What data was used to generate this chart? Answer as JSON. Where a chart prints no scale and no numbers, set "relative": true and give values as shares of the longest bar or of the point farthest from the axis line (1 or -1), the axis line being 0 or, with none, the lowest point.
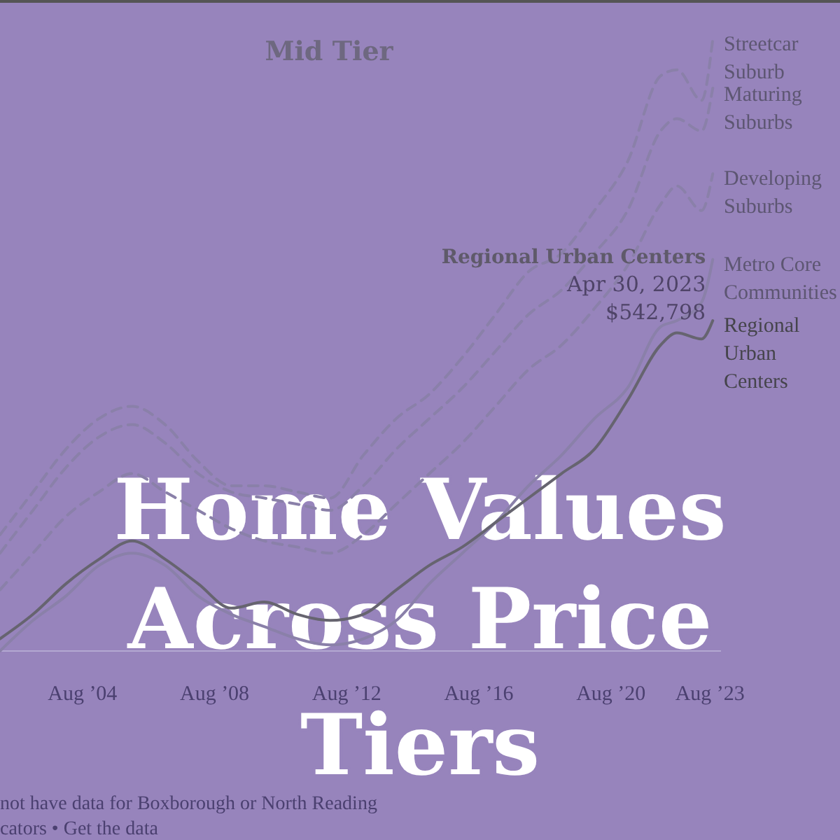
{
  "chart_data": {
    "type": "line",
    "title": "Home Values Across Price Tiers",
    "subtitle": "Mid Tier",
    "relative": true,
    "legend": false,
    "marker": "none",
    "x": [
      "2002-02",
      "2003-02",
      "2004-02",
      "2005-02",
      "2006-02",
      "2007-02",
      "2008-02",
      "2009-02",
      "2010-02",
      "2011-02",
      "2012-02",
      "2013-02",
      "2014-02",
      "2015-02",
      "2016-02",
      "2017-02",
      "2018-02",
      "2019-02",
      "2020-02",
      "2021-02",
      "2022-02",
      "2022-08",
      "2023-04-30",
      "2023-09"
    ],
    "xlim": [
      "2002-02",
      "2023-12"
    ],
    "xticks": [
      {
        "value": "2004-08",
        "label": "Aug ’04"
      },
      {
        "value": "2008-08",
        "label": "Aug ’08"
      },
      {
        "value": "2012-08",
        "label": "Aug ’12"
      },
      {
        "value": "2016-08",
        "label": "Aug ’16"
      },
      {
        "value": "2020-08",
        "label": "Aug ’20"
      },
      {
        "value": "2023-08",
        "label": "Aug ’23"
      }
    ],
    "series": [
      {
        "name": "Streetcar Suburb",
        "color": "#8a80a9",
        "line_style": "dashed",
        "values": [
          0.19,
          0.26,
          0.33,
          0.38,
          0.4,
          0.37,
          0.31,
          0.27,
          0.27,
          0.26,
          0.25,
          0.32,
          0.38,
          0.42,
          0.48,
          0.55,
          0.62,
          0.65,
          0.72,
          0.8,
          0.94,
          0.95,
          0.9,
          1
        ]
      },
      {
        "name": "Maturing Suburbs",
        "color": "#8a80a9",
        "line_style": "dashed",
        "values": [
          0.16,
          0.23,
          0.3,
          0.35,
          0.37,
          0.34,
          0.29,
          0.26,
          0.25,
          0.24,
          0.23,
          0.27,
          0.33,
          0.38,
          0.43,
          0.49,
          0.55,
          0.59,
          0.65,
          0.72,
          0.85,
          0.87,
          0.85,
          0.92
        ]
      },
      {
        "name": "Developing Suburbs",
        "color": "#8a80a9",
        "line_style": "dashed",
        "values": [
          0.1,
          0.16,
          0.22,
          0.26,
          0.29,
          0.26,
          0.23,
          0.2,
          0.18,
          0.17,
          0.16,
          0.19,
          0.24,
          0.29,
          0.34,
          0.4,
          0.46,
          0.5,
          0.56,
          0.63,
          0.73,
          0.76,
          0.72,
          0.78
        ]
      },
      {
        "name": "Metro Core Communities",
        "color": "#8a80a9",
        "line_style": "solid",
        "values": [
          0,
          0.05,
          0.09,
          0.14,
          0.16,
          0.14,
          0.09,
          0.06,
          0.04,
          0.02,
          0.01,
          0.02,
          0.05,
          0.11,
          0.16,
          0.21,
          0.27,
          0.32,
          0.38,
          0.43,
          0.53,
          0.54,
          0.57,
          0.64
        ]
      },
      {
        "name": "Regional Urban Centers",
        "color": "#66646f",
        "line_style": "solid",
        "values": [
          0.02,
          0.06,
          0.11,
          0.15,
          0.18,
          0.15,
          0.11,
          0.07,
          0.08,
          0.06,
          0.05,
          0.06,
          0.1,
          0.14,
          0.17,
          0.21,
          0.25,
          0.29,
          0.33,
          0.41,
          0.5,
          0.52,
          0.51,
          0.54
        ]
      }
    ],
    "annotations": [
      {
        "text": "Regional Urban Centers\nApr 30, 2023\n$542,798",
        "x": "2023-04-30",
        "y": 0.51
      },
      "not have data for Boxborough or North Reading",
      "cators • Get the data"
    ]
  }
}
